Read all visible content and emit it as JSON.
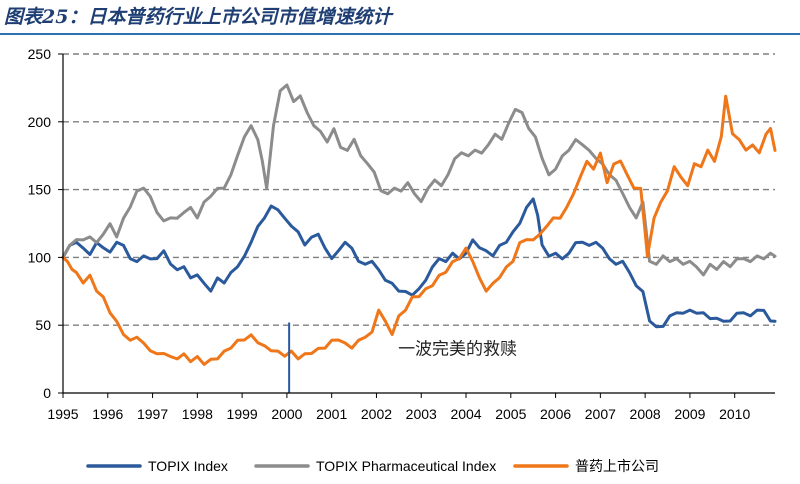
{
  "page_title": "图表25：日本普药行业上市公司市值增速统计",
  "chart_data": {
    "type": "line",
    "title": "图表25：日本普药行业上市公司市值增速统计",
    "xlabel": "",
    "ylabel": "",
    "xlim": [
      1995,
      2010.9
    ],
    "ylim": [
      0,
      250
    ],
    "yticks": [
      0,
      50,
      100,
      150,
      200,
      250
    ],
    "xticks": [
      "1995",
      "1996",
      "1997",
      "1998",
      "1999",
      "2000",
      "2001",
      "2002",
      "2003",
      "2004",
      "2005",
      "2006",
      "2007",
      "2008",
      "2009",
      "2010"
    ],
    "grid": "horizontal dashed",
    "legend_position": "bottom",
    "annotation": {
      "text": "一波完美的救赎",
      "x": 2001.5,
      "y": 30
    },
    "marker_line": {
      "x": 2000.05,
      "y_from": 52,
      "y_to": 0,
      "color": "#2b5a9c"
    },
    "series": [
      {
        "name": "TOPIX Index",
        "color": "#2b5a9c",
        "x": [
          1995.0,
          1995.15,
          1995.3,
          1995.45,
          1995.6,
          1995.75,
          1995.9,
          1996.05,
          1996.2,
          1996.35,
          1996.5,
          1996.65,
          1996.8,
          1996.95,
          1997.1,
          1997.25,
          1997.4,
          1997.55,
          1997.7,
          1997.85,
          1998.0,
          1998.15,
          1998.3,
          1998.45,
          1998.6,
          1998.75,
          1998.9,
          1999.05,
          1999.2,
          1999.35,
          1999.5,
          1999.65,
          1999.8,
          1999.95,
          2000.1,
          2000.25,
          2000.4,
          2000.55,
          2000.7,
          2000.85,
          2001.0,
          2001.15,
          2001.3,
          2001.45,
          2001.6,
          2001.75,
          2001.9,
          2002.05,
          2002.2,
          2002.35,
          2002.5,
          2002.65,
          2002.8,
          2002.95,
          2003.1,
          2003.25,
          2003.4,
          2003.55,
          2003.7,
          2003.85,
          2004.0,
          2004.15,
          2004.3,
          2004.45,
          2004.6,
          2004.75,
          2004.9,
          2005.05,
          2005.2,
          2005.35,
          2005.5,
          2005.6,
          2005.7,
          2005.85,
          2006.0,
          2006.15,
          2006.3,
          2006.45,
          2006.6,
          2006.75,
          2006.9,
          2007.05,
          2007.2,
          2007.35,
          2007.5,
          2007.65,
          2007.8,
          2007.95,
          2008.1,
          2008.25,
          2008.4,
          2008.55,
          2008.7,
          2008.85,
          2009.0,
          2009.15,
          2009.3,
          2009.45,
          2009.6,
          2009.75,
          2009.9,
          2010.05,
          2010.2,
          2010.35,
          2010.5,
          2010.65,
          2010.8,
          2010.9
        ],
        "values": [
          100,
          108,
          112,
          106,
          103,
          110,
          108,
          103,
          112,
          108,
          100,
          96,
          102,
          98,
          100,
          104,
          96,
          90,
          94,
          84,
          88,
          80,
          76,
          84,
          82,
          88,
          94,
          100,
          112,
          122,
          130,
          137,
          136,
          128,
          124,
          118,
          110,
          114,
          118,
          106,
          100,
          104,
          112,
          106,
          98,
          94,
          98,
          90,
          84,
          80,
          76,
          74,
          73,
          76,
          84,
          92,
          100,
          96,
          104,
          98,
          104,
          112,
          108,
          104,
          102,
          108,
          112,
          118,
          126,
          136,
          144,
          130,
          110,
          100,
          104,
          98,
          104,
          110,
          112,
          108,
          112,
          106,
          100,
          94,
          98,
          88,
          80,
          74,
          54,
          48,
          50,
          56,
          60,
          58,
          62,
          58,
          60,
          54,
          56,
          52,
          54,
          58,
          60,
          56,
          62,
          60,
          54,
          52
        ]
      },
      {
        "name": "TOPIX Pharmaceutical Index",
        "color": "#8c8c8c",
        "x": [
          1995.0,
          1995.15,
          1995.3,
          1995.45,
          1995.6,
          1995.75,
          1995.9,
          1996.05,
          1996.2,
          1996.35,
          1996.5,
          1996.65,
          1996.8,
          1996.95,
          1997.1,
          1997.25,
          1997.4,
          1997.55,
          1997.7,
          1997.85,
          1998.0,
          1998.15,
          1998.3,
          1998.45,
          1998.6,
          1998.75,
          1998.9,
          1999.05,
          1999.2,
          1999.35,
          1999.45,
          1999.55,
          1999.7,
          1999.85,
          2000.0,
          2000.15,
          2000.3,
          2000.45,
          2000.6,
          2000.75,
          2000.9,
          2001.05,
          2001.2,
          2001.35,
          2001.5,
          2001.65,
          2001.8,
          2001.95,
          2002.1,
          2002.25,
          2002.4,
          2002.55,
          2002.7,
          2002.85,
          2003.0,
          2003.15,
          2003.3,
          2003.45,
          2003.6,
          2003.75,
          2003.9,
          2004.05,
          2004.2,
          2004.35,
          2004.5,
          2004.65,
          2004.8,
          2004.95,
          2005.1,
          2005.25,
          2005.4,
          2005.55,
          2005.7,
          2005.85,
          2006.0,
          2006.15,
          2006.3,
          2006.45,
          2006.6,
          2006.75,
          2006.9,
          2007.05,
          2007.2,
          2007.35,
          2007.5,
          2007.65,
          2007.8,
          2007.95,
          2008.1,
          2008.25,
          2008.4,
          2008.55,
          2008.7,
          2008.85,
          2009.0,
          2009.15,
          2009.3,
          2009.45,
          2009.6,
          2009.75,
          2009.9,
          2010.05,
          2010.2,
          2010.35,
          2010.5,
          2010.65,
          2010.8,
          2010.9
        ],
        "values": [
          100,
          108,
          114,
          112,
          116,
          110,
          118,
          124,
          116,
          128,
          138,
          148,
          152,
          144,
          134,
          126,
          130,
          128,
          134,
          136,
          130,
          140,
          146,
          150,
          152,
          160,
          176,
          188,
          198,
          186,
          172,
          150,
          198,
          222,
          228,
          214,
          220,
          206,
          198,
          192,
          186,
          194,
          182,
          178,
          188,
          174,
          170,
          162,
          150,
          146,
          152,
          148,
          156,
          146,
          142,
          150,
          158,
          152,
          162,
          172,
          178,
          174,
          180,
          176,
          184,
          190,
          188,
          198,
          210,
          206,
          196,
          188,
          174,
          160,
          166,
          174,
          180,
          186,
          184,
          178,
          174,
          168,
          162,
          156,
          148,
          136,
          130,
          140,
          98,
          94,
          102,
          96,
          100,
          94,
          98,
          92,
          88,
          94,
          92,
          96,
          94,
          98,
          100,
          96,
          102,
          98,
          104,
          100
        ]
      },
      {
        "name": "普药上市公司",
        "color": "#ef7619",
        "x": [
          1995.0,
          1995.1,
          1995.2,
          1995.3,
          1995.45,
          1995.6,
          1995.75,
          1995.9,
          1996.05,
          1996.2,
          1996.35,
          1996.5,
          1996.65,
          1996.8,
          1996.95,
          1997.1,
          1997.25,
          1997.4,
          1997.55,
          1997.7,
          1997.85,
          1998.0,
          1998.15,
          1998.3,
          1998.45,
          1998.6,
          1998.75,
          1998.9,
          1999.05,
          1999.2,
          1999.35,
          1999.5,
          1999.65,
          1999.8,
          1999.95,
          2000.1,
          2000.25,
          2000.4,
          2000.55,
          2000.7,
          2000.85,
          2001.0,
          2001.15,
          2001.3,
          2001.45,
          2001.6,
          2001.75,
          2001.9,
          2002.05,
          2002.2,
          2002.35,
          2002.5,
          2002.65,
          2002.8,
          2002.95,
          2003.1,
          2003.25,
          2003.4,
          2003.55,
          2003.7,
          2003.85,
          2004.0,
          2004.15,
          2004.3,
          2004.45,
          2004.6,
          2004.75,
          2004.9,
          2005.05,
          2005.2,
          2005.35,
          2005.5,
          2005.65,
          2005.8,
          2005.95,
          2006.1,
          2006.25,
          2006.4,
          2006.55,
          2006.7,
          2006.85,
          2007.0,
          2007.15,
          2007.3,
          2007.45,
          2007.6,
          2007.75,
          2007.9,
          2008.0,
          2008.05,
          2008.2,
          2008.35,
          2008.5,
          2008.65,
          2008.8,
          2008.95,
          2009.1,
          2009.25,
          2009.4,
          2009.55,
          2009.7,
          2009.8,
          2009.95,
          2010.1,
          2010.25,
          2010.4,
          2010.55,
          2010.7,
          2010.8,
          2010.9
        ],
        "values": [
          100,
          96,
          92,
          88,
          82,
          86,
          76,
          70,
          60,
          52,
          44,
          38,
          42,
          36,
          32,
          28,
          30,
          26,
          26,
          28,
          24,
          26,
          22,
          24,
          26,
          30,
          34,
          38,
          40,
          42,
          38,
          34,
          32,
          30,
          28,
          30,
          26,
          28,
          30,
          32,
          34,
          38,
          40,
          36,
          34,
          38,
          42,
          44,
          62,
          52,
          44,
          56,
          62,
          70,
          72,
          76,
          80,
          86,
          90,
          96,
          100,
          106,
          98,
          84,
          76,
          80,
          86,
          92,
          98,
          110,
          114,
          112,
          118,
          122,
          130,
          128,
          138,
          146,
          160,
          170,
          166,
          176,
          156,
          168,
          172,
          160,
          152,
          150,
          120,
          100,
          130,
          140,
          150,
          166,
          160,
          152,
          170,
          166,
          180,
          170,
          190,
          218,
          192,
          186,
          180,
          182,
          178,
          190,
          196,
          178
        ]
      }
    ]
  }
}
